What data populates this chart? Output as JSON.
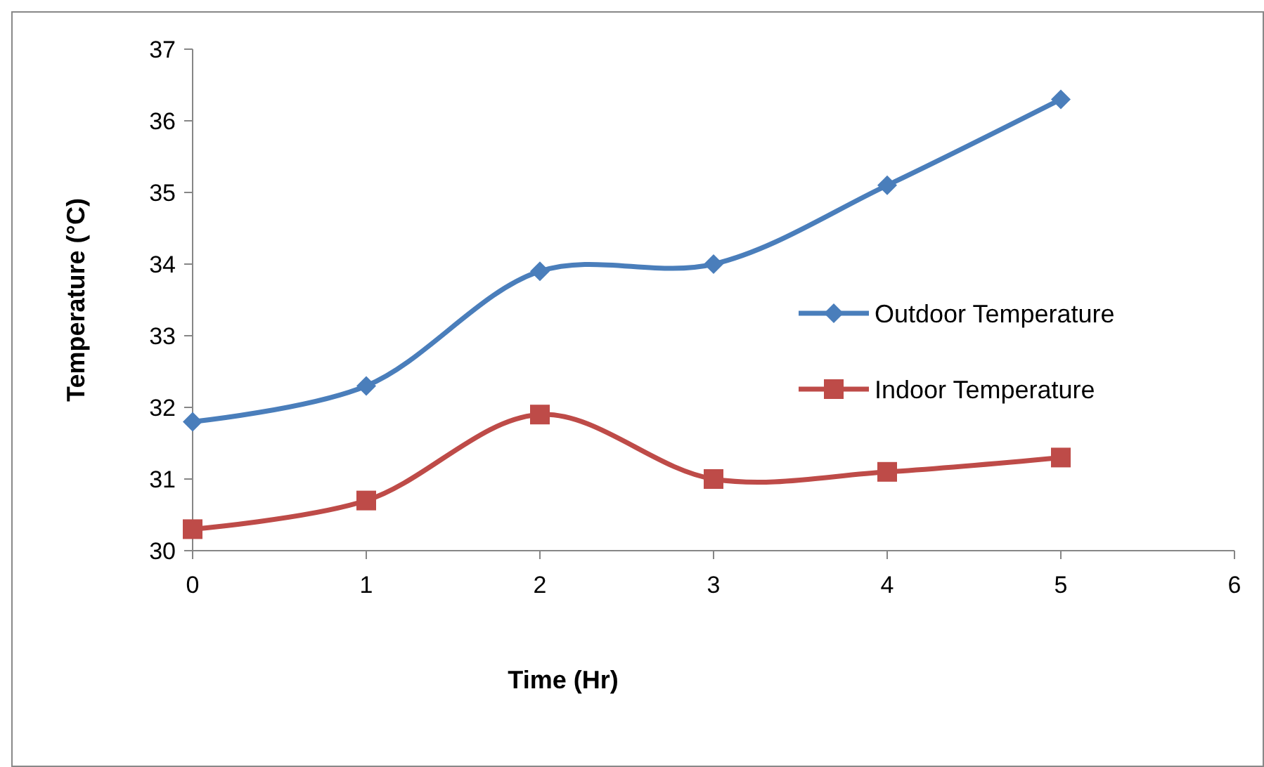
{
  "chart_data": {
    "type": "line",
    "xlabel": "Time (Hr)",
    "ylabel": "Temperature (°C)",
    "x": [
      0,
      1,
      2,
      3,
      4,
      5
    ],
    "series": [
      {
        "name": "Outdoor Temperature",
        "color": "#4a7ebb",
        "marker": "diamond",
        "values": [
          31.8,
          32.3,
          33.9,
          34.0,
          35.1,
          36.3
        ]
      },
      {
        "name": "Indoor Temperature",
        "color": "#be4b48",
        "marker": "square",
        "values": [
          30.3,
          30.7,
          31.9,
          31.0,
          31.1,
          31.3
        ]
      }
    ],
    "xlim": [
      0,
      6
    ],
    "xticks": [
      0,
      1,
      2,
      3,
      4,
      5,
      6
    ],
    "ylim": [
      30,
      37
    ],
    "yticks": [
      30,
      31,
      32,
      33,
      34,
      35,
      36,
      37
    ],
    "grid": false,
    "legend": "right",
    "line_style": "solid"
  }
}
